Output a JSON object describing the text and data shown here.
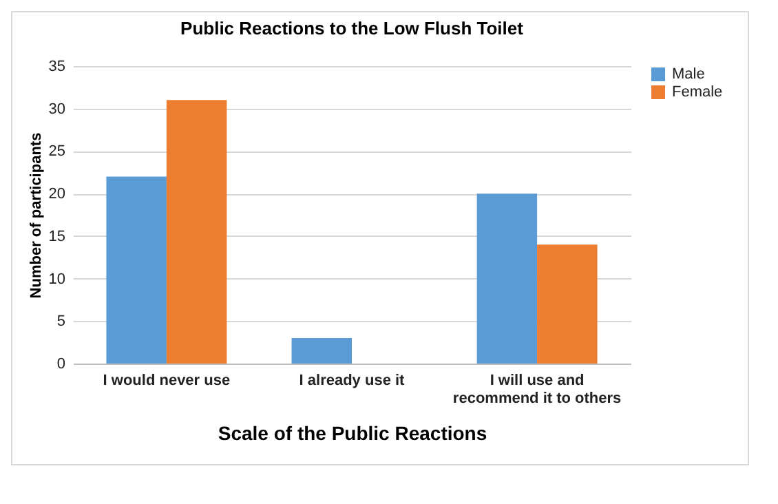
{
  "chart_data": {
    "type": "bar",
    "title": "Public Reactions to the Low Flush Toilet",
    "xlabel": "Scale of the Public Reactions",
    "ylabel": "Number of participants",
    "categories": [
      "I would never use",
      "I already use it",
      "I will use and recommend it to others"
    ],
    "series": [
      {
        "name": "Male",
        "color": "#5b9bd5",
        "values": [
          22,
          3,
          20
        ]
      },
      {
        "name": "Female",
        "color": "#ed7d31",
        "values": [
          31,
          null,
          14
        ]
      }
    ],
    "ylim": [
      0,
      35
    ],
    "yticks": [
      0,
      5,
      10,
      15,
      20,
      25,
      30,
      35
    ],
    "grid": "y",
    "legend": "right"
  }
}
